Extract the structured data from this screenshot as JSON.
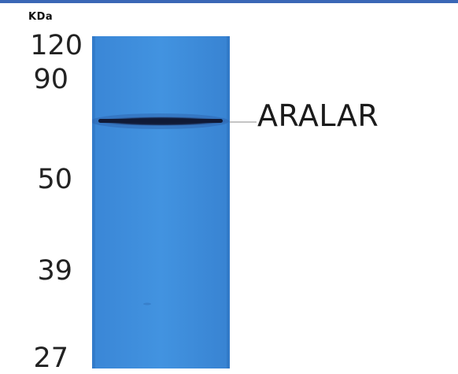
{
  "colors": {
    "top_bar": "#3a67b6",
    "lane": "#3f8edc",
    "band": "#121c3a",
    "text": "#1b1b1b"
  },
  "ladder": {
    "unit": "KDa",
    "markers": [
      "120",
      "90",
      "50",
      "39",
      "27"
    ]
  },
  "band": {
    "label": "ARALAR"
  }
}
